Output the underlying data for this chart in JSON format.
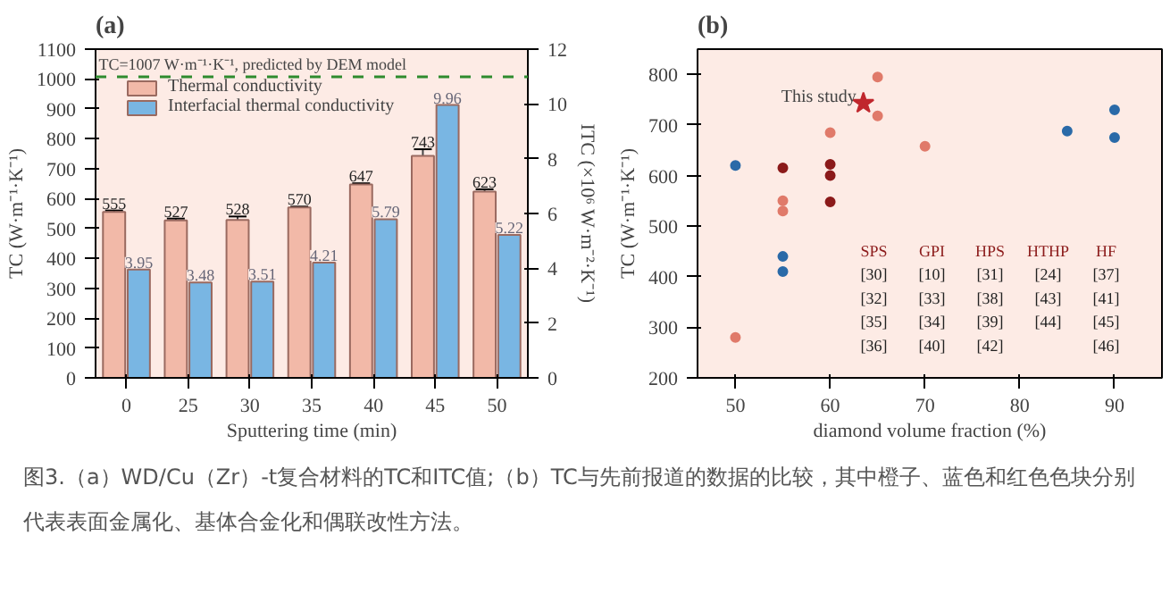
{
  "chart_data": [
    {
      "type": "bar",
      "title": "(a)",
      "xlabel": "Sputtering time (min)",
      "ylabel": "TC (W·m⁻¹·K⁻¹)",
      "y2label": "ITC (×10⁶ W·m⁻²·K⁻¹)",
      "categories": [
        "0",
        "25",
        "30",
        "35",
        "40",
        "45",
        "50"
      ],
      "series": [
        {
          "name": "Thermal conductivity",
          "color": "#f2b9a8",
          "values": [
            555,
            527,
            528,
            570,
            647,
            743,
            623
          ],
          "errors": [
            5,
            6,
            12,
            3,
            4,
            22,
            8
          ]
        },
        {
          "name": "Interfacial thermal conductivity",
          "color": "#79b6e3",
          "axis": "y2",
          "values": [
            3.95,
            3.48,
            3.51,
            4.21,
            5.79,
            9.96,
            5.22
          ]
        }
      ],
      "data_labels": true,
      "ylim": [
        0,
        1100
      ],
      "yticks": [
        0,
        100,
        200,
        300,
        400,
        500,
        600,
        700,
        800,
        900,
        1000,
        1100
      ],
      "y2lim": [
        0,
        12
      ],
      "y2ticks": [
        0,
        2,
        4,
        6,
        8,
        10,
        12
      ],
      "ref_lines": [
        {
          "axis": "y",
          "value": 1007,
          "label": "TC=1007 W·m⁻¹·K⁻¹, predicted by DEM model",
          "color": "#2e8b2e",
          "line_style": "dashed"
        }
      ],
      "legend": "top left",
      "grid": false,
      "annotations": [
        "图3.（a）WD/Cu（Zr）-t复合材料的TC和ITC值;（b）TC与先前报道的数据的比较，其中橙子、蓝色和红色色块分别代表表面金属化、基体合金化和偶联改性方法。"
      ]
    },
    {
      "type": "scatter",
      "title": "(b)",
      "xlabel": "diamond volume fraction (%)",
      "ylabel": "TC (W·m⁻¹·K⁻¹)",
      "series": [
        {
          "color": "#e07a6a",
          "x": [
            50,
            55,
            55,
            60,
            65,
            65,
            70
          ],
          "values": [
            280,
            550,
            530,
            685,
            795,
            718,
            658
          ]
        },
        {
          "color": "#8b1a1a",
          "x": [
            55,
            60,
            60,
            60
          ],
          "values": [
            615,
            622,
            600,
            548
          ]
        },
        {
          "color": "#2a6aa8",
          "x": [
            50,
            55,
            55,
            85,
            90,
            90
          ],
          "values": [
            620,
            440,
            410,
            688,
            730,
            675
          ]
        },
        {
          "name": "This study",
          "color": "#c0272d",
          "x": [
            63.5
          ],
          "values": [
            743
          ],
          "marker": "star"
        }
      ],
      "marker": "circle",
      "xlim": [
        46,
        95
      ],
      "xticks": [
        50,
        60,
        70,
        80,
        90
      ],
      "ylim": [
        200,
        850
      ],
      "yticks": [
        200,
        300,
        400,
        500,
        600,
        700,
        800
      ],
      "grid": false,
      "legend": false,
      "annotations": [
        "SPS",
        "GPI",
        "HPS",
        "HTHP",
        "HF",
        "[30]",
        "[10]",
        "[31]",
        "[24]",
        "[37]",
        "[32]",
        "[33]",
        "[38]",
        "[43]",
        "[41]",
        "[35]",
        "[34]",
        "[39]",
        "[44]",
        "[45]",
        "[36]",
        "[40]",
        "[42]",
        "[46]"
      ]
    }
  ]
}
